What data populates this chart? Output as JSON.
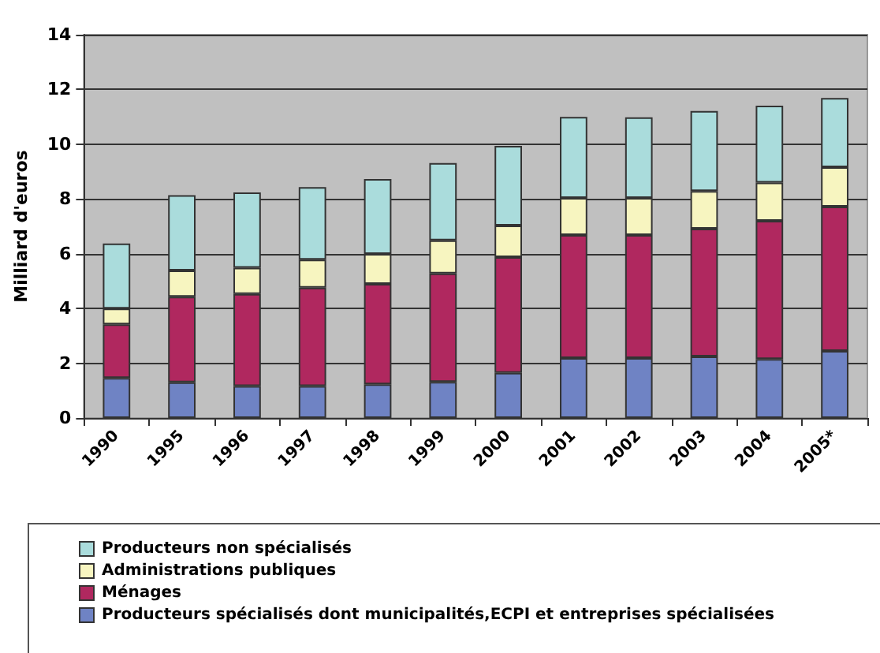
{
  "chart_data": {
    "type": "bar",
    "ylabel": "Milliard d'euros",
    "categories": [
      "1990",
      "1995",
      "1996",
      "1997",
      "1998",
      "1999",
      "2000",
      "2001",
      "2002",
      "2003",
      "2004",
      "2005*"
    ],
    "stacked": true,
    "series": [
      {
        "name": "Producteurs spécialisés dont municipalités,ECPI et entreprises spécialisées",
        "color": "#6f83c4",
        "values": [
          1.46,
          1.3,
          1.17,
          1.17,
          1.23,
          1.32,
          1.65,
          2.19,
          2.19,
          2.25,
          2.15,
          2.45
        ]
      },
      {
        "name": "Ménages",
        "color": "#b0285f",
        "values": [
          1.96,
          3.13,
          3.36,
          3.59,
          3.67,
          3.96,
          4.23,
          4.49,
          4.49,
          4.66,
          5.05,
          5.27
        ]
      },
      {
        "name": "Administrations publiques",
        "color": "#f7f5c0",
        "values": [
          0.58,
          0.96,
          0.96,
          1.02,
          1.09,
          1.21,
          1.15,
          1.36,
          1.36,
          1.38,
          1.4,
          1.44
        ]
      },
      {
        "name": "Producteurs non spécialisés",
        "color": "#aadcdc",
        "values": [
          2.37,
          2.75,
          2.75,
          2.65,
          2.74,
          2.82,
          2.91,
          2.96,
          2.94,
          2.92,
          2.81,
          2.53
        ]
      }
    ],
    "ylim": [
      0,
      14
    ],
    "yticks": [
      0,
      2,
      4,
      6,
      8,
      10,
      12,
      14
    ],
    "grid": "y",
    "legend": "bottom"
  }
}
